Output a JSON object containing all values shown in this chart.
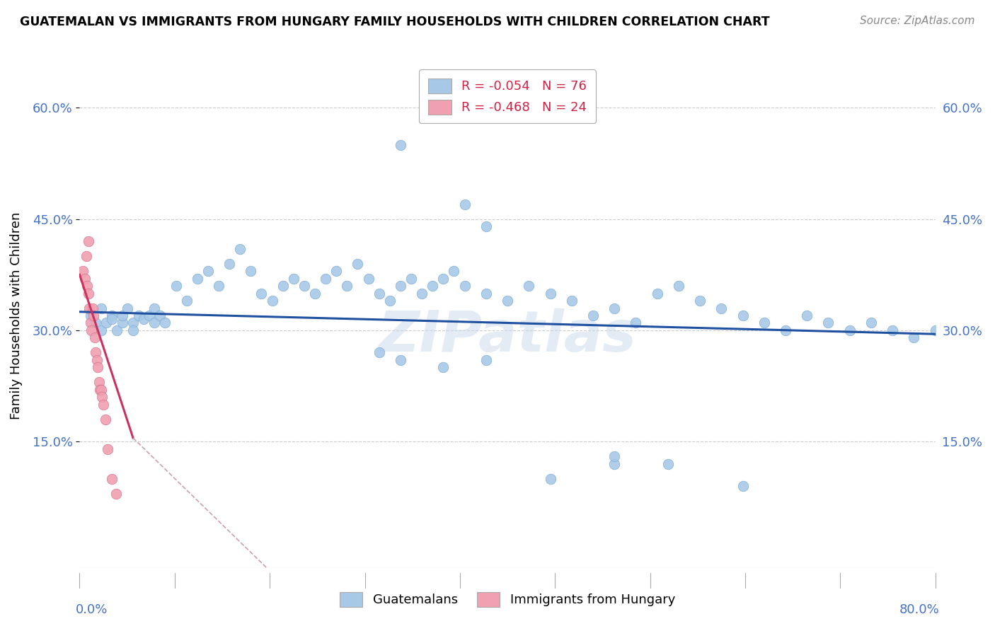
{
  "title": "GUATEMALAN VS IMMIGRANTS FROM HUNGARY FAMILY HOUSEHOLDS WITH CHILDREN CORRELATION CHART",
  "source": "Source: ZipAtlas.com",
  "ylabel": "Family Households with Children",
  "ytick_vals": [
    0.15,
    0.3,
    0.45,
    0.6
  ],
  "xlim": [
    0.0,
    0.8
  ],
  "ylim": [
    -0.02,
    0.66
  ],
  "legend_r1": "R = -0.054",
  "legend_n1": "N = 76",
  "legend_r2": "R = -0.468",
  "legend_n2": "N = 24",
  "color_blue": "#A8C8E8",
  "color_pink": "#F0A0B0",
  "line_blue": "#2050A0",
  "line_pink": "#CC3060",
  "line_dashed_color": "#C8A0B0",
  "watermark": "ZIPatlas",
  "blue_x": [
    0.01,
    0.015,
    0.02,
    0.02,
    0.025,
    0.03,
    0.03,
    0.035,
    0.04,
    0.04,
    0.045,
    0.05,
    0.05,
    0.055,
    0.06,
    0.065,
    0.07,
    0.07,
    0.075,
    0.08,
    0.09,
    0.1,
    0.11,
    0.12,
    0.13,
    0.14,
    0.15,
    0.16,
    0.17,
    0.18,
    0.19,
    0.2,
    0.21,
    0.22,
    0.23,
    0.24,
    0.25,
    0.26,
    0.27,
    0.28,
    0.29,
    0.3,
    0.31,
    0.32,
    0.33,
    0.34,
    0.35,
    0.36,
    0.38,
    0.4,
    0.42,
    0.44,
    0.46,
    0.48,
    0.5,
    0.52,
    0.54,
    0.56,
    0.58,
    0.6,
    0.62,
    0.64,
    0.66,
    0.68,
    0.7,
    0.72,
    0.74,
    0.76,
    0.78,
    0.8,
    0.28,
    0.3,
    0.34,
    0.38,
    0.44,
    0.5
  ],
  "blue_y": [
    0.32,
    0.31,
    0.33,
    0.3,
    0.31,
    0.32,
    0.315,
    0.3,
    0.31,
    0.32,
    0.33,
    0.31,
    0.3,
    0.32,
    0.315,
    0.32,
    0.33,
    0.31,
    0.32,
    0.31,
    0.36,
    0.34,
    0.37,
    0.38,
    0.36,
    0.39,
    0.41,
    0.38,
    0.35,
    0.34,
    0.36,
    0.37,
    0.36,
    0.35,
    0.37,
    0.38,
    0.36,
    0.39,
    0.37,
    0.35,
    0.34,
    0.36,
    0.37,
    0.35,
    0.36,
    0.37,
    0.38,
    0.36,
    0.35,
    0.34,
    0.36,
    0.35,
    0.34,
    0.32,
    0.33,
    0.31,
    0.35,
    0.36,
    0.34,
    0.33,
    0.32,
    0.31,
    0.3,
    0.32,
    0.31,
    0.3,
    0.31,
    0.3,
    0.29,
    0.3,
    0.27,
    0.26,
    0.25,
    0.26,
    0.1,
    0.12
  ],
  "blue_x_outliers": [
    0.3,
    0.36,
    0.38,
    0.5,
    0.55,
    0.62
  ],
  "blue_y_outliers": [
    0.55,
    0.47,
    0.44,
    0.13,
    0.12,
    0.09
  ],
  "pink_x": [
    0.003,
    0.005,
    0.006,
    0.007,
    0.008,
    0.008,
    0.009,
    0.01,
    0.011,
    0.012,
    0.013,
    0.014,
    0.015,
    0.016,
    0.017,
    0.018,
    0.019,
    0.02,
    0.021,
    0.022,
    0.024,
    0.026,
    0.03,
    0.034
  ],
  "pink_y": [
    0.38,
    0.37,
    0.4,
    0.36,
    0.35,
    0.42,
    0.33,
    0.31,
    0.3,
    0.33,
    0.32,
    0.29,
    0.27,
    0.26,
    0.25,
    0.23,
    0.22,
    0.22,
    0.21,
    0.2,
    0.18,
    0.14,
    0.1,
    0.08
  ],
  "blue_trend_x0": 0.0,
  "blue_trend_y0": 0.325,
  "blue_trend_x1": 0.8,
  "blue_trend_y1": 0.295,
  "pink_trend_solid_x0": 0.0,
  "pink_trend_solid_y0": 0.375,
  "pink_trend_solid_x1": 0.05,
  "pink_trend_solid_y1": 0.155,
  "pink_trend_dash_x0": 0.05,
  "pink_trend_dash_y0": 0.155,
  "pink_trend_dash_x1": 0.175,
  "pink_trend_dash_y1": -0.02
}
